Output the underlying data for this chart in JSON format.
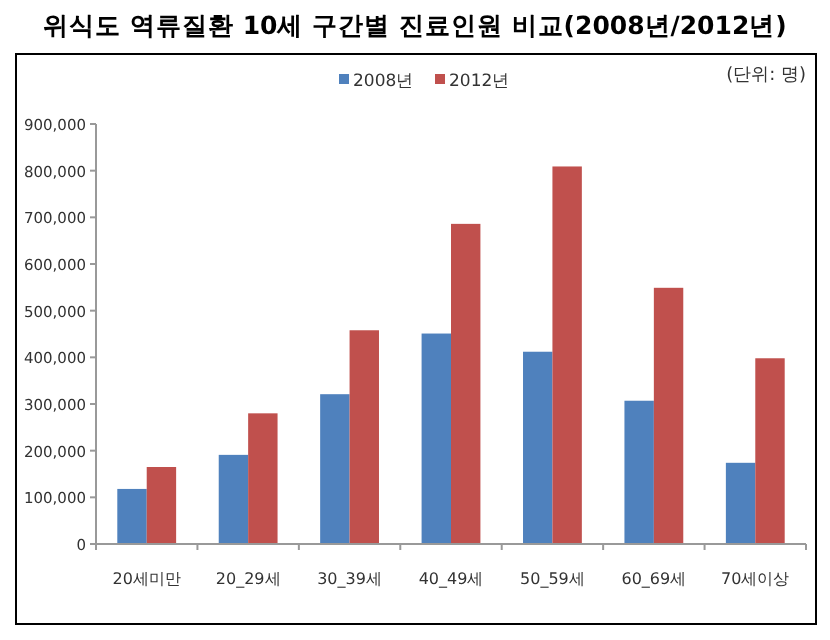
{
  "chart_data": {
    "type": "bar",
    "title": "위식도 역류질환 10세 구간별 진료인원 비교(2008년/2012년)",
    "annotations": [
      "(단위: 명)"
    ],
    "categories": [
      "20세미만",
      "20_29세",
      "30_39세",
      "40_49세",
      "50_59세",
      "60_69세",
      "70세이상"
    ],
    "series": [
      {
        "name": "2008년",
        "color": "#4f81bd",
        "values": [
          118000,
          191000,
          321000,
          451000,
          412000,
          307000,
          174000
        ]
      },
      {
        "name": "2012년",
        "color": "#c0504d",
        "values": [
          165000,
          280000,
          458000,
          686000,
          809000,
          549000,
          398000
        ]
      }
    ],
    "ylim": [
      0,
      900000
    ],
    "yticks": [
      {
        "value": 0,
        "label": "0"
      },
      {
        "value": 100000,
        "label": "100,000"
      },
      {
        "value": 200000,
        "label": "200,000"
      },
      {
        "value": 300000,
        "label": "300,000"
      },
      {
        "value": 400000,
        "label": "400,000"
      },
      {
        "value": 500000,
        "label": "500,000"
      },
      {
        "value": 600000,
        "label": "600,000"
      },
      {
        "value": 700000,
        "label": "700,000"
      },
      {
        "value": 800000,
        "label": "800,000"
      },
      {
        "value": 900000,
        "label": "900,000"
      }
    ],
    "grid": false,
    "legend": "top"
  }
}
